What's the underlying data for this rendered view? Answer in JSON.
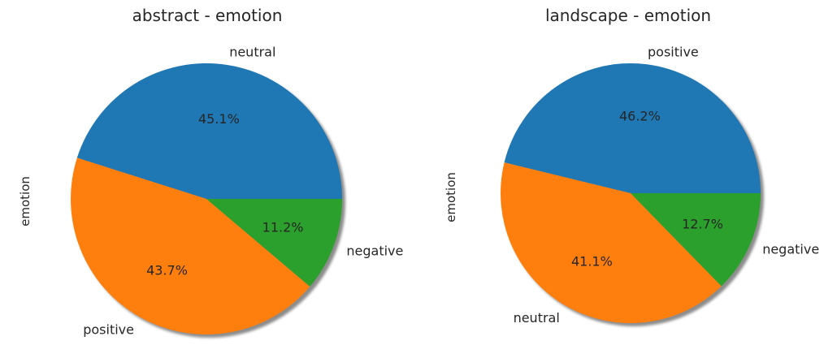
{
  "chart_data": [
    {
      "type": "pie",
      "title": "abstract - emotion",
      "ylabel": "emotion",
      "slices": [
        {
          "label": "neutral",
          "value": 45.1,
          "pct_label": "45.1%",
          "color": "#1f77b4"
        },
        {
          "label": "positive",
          "value": 43.7,
          "pct_label": "43.7%",
          "color": "#ff7f0e"
        },
        {
          "label": "negative",
          "value": 11.2,
          "pct_label": "11.2%",
          "color": "#2ca02c"
        }
      ],
      "start_angle_deg": 0,
      "direction": "counterclockwise",
      "shadow": true
    },
    {
      "type": "pie",
      "title": "landscape - emotion",
      "ylabel": "emotion",
      "slices": [
        {
          "label": "positive",
          "value": 46.2,
          "pct_label": "46.2%",
          "color": "#1f77b4"
        },
        {
          "label": "neutral",
          "value": 41.1,
          "pct_label": "41.1%",
          "color": "#ff7f0e"
        },
        {
          "label": "negative",
          "value": 12.7,
          "pct_label": "12.7%",
          "color": "#2ca02c"
        }
      ],
      "start_angle_deg": 0,
      "direction": "counterclockwise",
      "shadow": true
    }
  ]
}
